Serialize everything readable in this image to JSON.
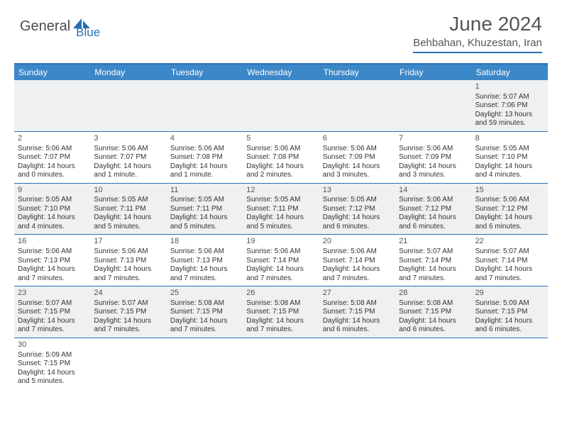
{
  "logo": {
    "part1": "General",
    "part2": "Blue"
  },
  "title": "June 2024",
  "location": "Behbahan, Khuzestan, Iran",
  "colors": {
    "brand_blue": "#2a6fb5",
    "header_blue": "#3c87c7",
    "row_alt": "#eef0f1",
    "text": "#333333",
    "muted": "#555555",
    "white": "#ffffff"
  },
  "dayNames": [
    "Sunday",
    "Monday",
    "Tuesday",
    "Wednesday",
    "Thursday",
    "Friday",
    "Saturday"
  ],
  "days": [
    {
      "n": 1,
      "sr": "5:07 AM",
      "ss": "7:06 PM",
      "dl": "13 hours and 59 minutes."
    },
    {
      "n": 2,
      "sr": "5:06 AM",
      "ss": "7:07 PM",
      "dl": "14 hours and 0 minutes."
    },
    {
      "n": 3,
      "sr": "5:06 AM",
      "ss": "7:07 PM",
      "dl": "14 hours and 1 minute."
    },
    {
      "n": 4,
      "sr": "5:06 AM",
      "ss": "7:08 PM",
      "dl": "14 hours and 1 minute."
    },
    {
      "n": 5,
      "sr": "5:06 AM",
      "ss": "7:08 PM",
      "dl": "14 hours and 2 minutes."
    },
    {
      "n": 6,
      "sr": "5:06 AM",
      "ss": "7:09 PM",
      "dl": "14 hours and 3 minutes."
    },
    {
      "n": 7,
      "sr": "5:06 AM",
      "ss": "7:09 PM",
      "dl": "14 hours and 3 minutes."
    },
    {
      "n": 8,
      "sr": "5:05 AM",
      "ss": "7:10 PM",
      "dl": "14 hours and 4 minutes."
    },
    {
      "n": 9,
      "sr": "5:05 AM",
      "ss": "7:10 PM",
      "dl": "14 hours and 4 minutes."
    },
    {
      "n": 10,
      "sr": "5:05 AM",
      "ss": "7:11 PM",
      "dl": "14 hours and 5 minutes."
    },
    {
      "n": 11,
      "sr": "5:05 AM",
      "ss": "7:11 PM",
      "dl": "14 hours and 5 minutes."
    },
    {
      "n": 12,
      "sr": "5:05 AM",
      "ss": "7:11 PM",
      "dl": "14 hours and 5 minutes."
    },
    {
      "n": 13,
      "sr": "5:05 AM",
      "ss": "7:12 PM",
      "dl": "14 hours and 6 minutes."
    },
    {
      "n": 14,
      "sr": "5:06 AM",
      "ss": "7:12 PM",
      "dl": "14 hours and 6 minutes."
    },
    {
      "n": 15,
      "sr": "5:06 AM",
      "ss": "7:12 PM",
      "dl": "14 hours and 6 minutes."
    },
    {
      "n": 16,
      "sr": "5:06 AM",
      "ss": "7:13 PM",
      "dl": "14 hours and 7 minutes."
    },
    {
      "n": 17,
      "sr": "5:06 AM",
      "ss": "7:13 PM",
      "dl": "14 hours and 7 minutes."
    },
    {
      "n": 18,
      "sr": "5:06 AM",
      "ss": "7:13 PM",
      "dl": "14 hours and 7 minutes."
    },
    {
      "n": 19,
      "sr": "5:06 AM",
      "ss": "7:14 PM",
      "dl": "14 hours and 7 minutes."
    },
    {
      "n": 20,
      "sr": "5:06 AM",
      "ss": "7:14 PM",
      "dl": "14 hours and 7 minutes."
    },
    {
      "n": 21,
      "sr": "5:07 AM",
      "ss": "7:14 PM",
      "dl": "14 hours and 7 minutes."
    },
    {
      "n": 22,
      "sr": "5:07 AM",
      "ss": "7:14 PM",
      "dl": "14 hours and 7 minutes."
    },
    {
      "n": 23,
      "sr": "5:07 AM",
      "ss": "7:15 PM",
      "dl": "14 hours and 7 minutes."
    },
    {
      "n": 24,
      "sr": "5:07 AM",
      "ss": "7:15 PM",
      "dl": "14 hours and 7 minutes."
    },
    {
      "n": 25,
      "sr": "5:08 AM",
      "ss": "7:15 PM",
      "dl": "14 hours and 7 minutes."
    },
    {
      "n": 26,
      "sr": "5:08 AM",
      "ss": "7:15 PM",
      "dl": "14 hours and 7 minutes."
    },
    {
      "n": 27,
      "sr": "5:08 AM",
      "ss": "7:15 PM",
      "dl": "14 hours and 6 minutes."
    },
    {
      "n": 28,
      "sr": "5:08 AM",
      "ss": "7:15 PM",
      "dl": "14 hours and 6 minutes."
    },
    {
      "n": 29,
      "sr": "5:09 AM",
      "ss": "7:15 PM",
      "dl": "14 hours and 6 minutes."
    },
    {
      "n": 30,
      "sr": "5:09 AM",
      "ss": "7:15 PM",
      "dl": "14 hours and 5 minutes."
    }
  ],
  "labels": {
    "sunrise": "Sunrise:",
    "sunset": "Sunset:",
    "daylight": "Daylight:"
  },
  "layout": {
    "firstDayOffset": 6,
    "totalCells": 42
  }
}
